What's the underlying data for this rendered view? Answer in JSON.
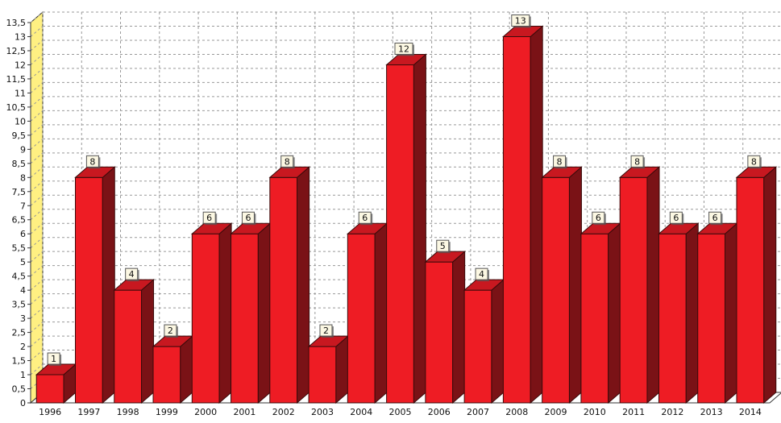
{
  "chart_data": {
    "type": "bar",
    "style": "3d",
    "categories": [
      "1996",
      "1997",
      "1998",
      "1999",
      "2000",
      "2001",
      "2002",
      "2003",
      "2004",
      "2005",
      "2006",
      "2007",
      "2008",
      "2009",
      "2010",
      "2011",
      "2012",
      "2013",
      "2014"
    ],
    "values": [
      1,
      8,
      4,
      2,
      6,
      6,
      8,
      2,
      6,
      12,
      5,
      4,
      13,
      8,
      6,
      8,
      6,
      6,
      8
    ],
    "ylim": [
      0,
      13.5
    ],
    "yticks": [
      "0",
      "0,5",
      "1",
      "1,5",
      "2",
      "2,5",
      "3",
      "3,5",
      "4",
      "4,5",
      "5",
      "5,5",
      "6",
      "6,5",
      "7",
      "7,5",
      "8",
      "8,5",
      "9",
      "9,5",
      "10",
      "10,5",
      "11",
      "11,5",
      "12",
      "12,5",
      "13",
      "13,5"
    ],
    "grid": true,
    "legend": "none",
    "title": "",
    "xlabel": "",
    "ylabel": "",
    "colors": {
      "bar_front": "#ee1c24",
      "bar_top": "#c81820",
      "bar_side": "#7a1216",
      "wall": "#fff082",
      "grid": "#999999",
      "label_bg": "#fcf8e3",
      "label_shadow": "#555555"
    }
  }
}
